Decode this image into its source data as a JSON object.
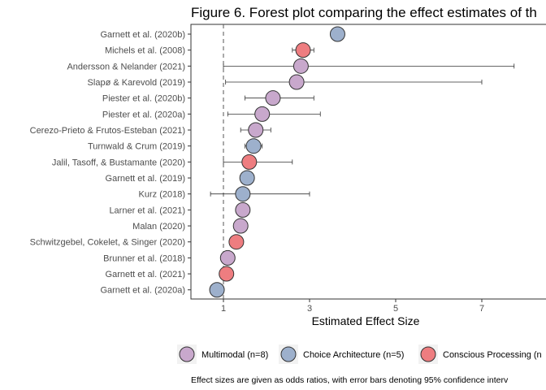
{
  "chart_data": {
    "type": "scatter",
    "title": "Figure 6. Forest plot comparing the effect estimates of th",
    "xlabel": "Estimated Effect Size",
    "ylabel": "",
    "xlim": [
      -0.15,
      8.4
    ],
    "xticks": [
      1,
      3,
      5,
      7
    ],
    "reference_line": 1,
    "grid": false,
    "legend_position": "bottom",
    "series": [
      {
        "name": "Multimodal (n=8)",
        "color": "#C8A8CC"
      },
      {
        "name": "Choice Architecture (n=5)",
        "color": "#9DB0CC"
      },
      {
        "name": "Conscious Processing (n",
        "color": "#EE7D80"
      }
    ],
    "studies": [
      {
        "label": "Garnett et al. (2020b)",
        "estimate": 3.65,
        "ci_low": null,
        "ci_high": null,
        "series": 1
      },
      {
        "label": "Michels et al. (2008)",
        "estimate": 2.85,
        "ci_low": 2.6,
        "ci_high": 3.1,
        "series": 2
      },
      {
        "label": "Andersson & Nelander (2021)",
        "estimate": 2.8,
        "ci_low": 1.0,
        "ci_high": 7.75,
        "series": 0
      },
      {
        "label": "Slapø & Karevold (2019)",
        "estimate": 2.7,
        "ci_low": 1.05,
        "ci_high": 7.0,
        "series": 0
      },
      {
        "label": "Piester et al. (2020b)",
        "estimate": 2.15,
        "ci_low": 1.5,
        "ci_high": 3.1,
        "series": 0
      },
      {
        "label": "Piester et al. (2020a)",
        "estimate": 1.9,
        "ci_low": 1.1,
        "ci_high": 3.25,
        "series": 0
      },
      {
        "label": "Cerezo-Prieto & Frutos-Esteban (2021)",
        "estimate": 1.75,
        "ci_low": 1.4,
        "ci_high": 2.1,
        "series": 0
      },
      {
        "label": "Turnwald & Crum (2019)",
        "estimate": 1.7,
        "ci_low": 1.5,
        "ci_high": 1.9,
        "series": 1
      },
      {
        "label": "Jalil, Tasoff, & Bustamante (2020)",
        "estimate": 1.6,
        "ci_low": 1.0,
        "ci_high": 2.6,
        "series": 2
      },
      {
        "label": "Garnett et al. (2019)",
        "estimate": 1.55,
        "ci_low": null,
        "ci_high": null,
        "series": 1
      },
      {
        "label": "Kurz (2018)",
        "estimate": 1.45,
        "ci_low": 0.7,
        "ci_high": 3.0,
        "series": 1
      },
      {
        "label": "Larner et al. (2021)",
        "estimate": 1.45,
        "ci_low": 1.35,
        "ci_high": 1.55,
        "series": 0
      },
      {
        "label": "Malan (2020)",
        "estimate": 1.4,
        "ci_low": 1.3,
        "ci_high": 1.5,
        "series": 0
      },
      {
        "label": "Schwitzgebel, Cokelet, & Singer (2020)",
        "estimate": 1.3,
        "ci_low": 1.2,
        "ci_high": 1.4,
        "series": 2
      },
      {
        "label": "Brunner et al. (2018)",
        "estimate": 1.1,
        "ci_low": 1.0,
        "ci_high": 1.2,
        "series": 0
      },
      {
        "label": "Garnett et al. (2021)",
        "estimate": 1.07,
        "ci_low": 1.0,
        "ci_high": 1.15,
        "series": 2
      },
      {
        "label": "Garnett et al. (2020a)",
        "estimate": 0.85,
        "ci_low": 0.8,
        "ci_high": 0.9,
        "series": 1
      }
    ],
    "caption": "Effect sizes are given as odds ratios, with error bars denoting 95% confidence interv"
  }
}
